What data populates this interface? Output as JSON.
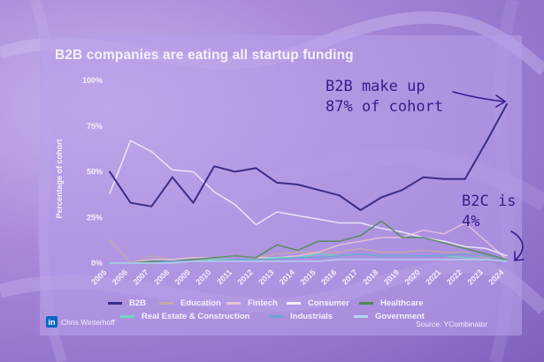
{
  "chart_data": {
    "type": "line",
    "title": "B2B companies are eating all startup funding",
    "ylabel": "Percentage of cohort",
    "xlabel": "",
    "ylim": [
      0,
      100
    ],
    "yticks": [
      "0%",
      "25%",
      "50%",
      "75%",
      "100%"
    ],
    "yticks_values": [
      0,
      25,
      50,
      75,
      100
    ],
    "categories": [
      "2005",
      "2006",
      "2007",
      "2008",
      "2009",
      "2010",
      "2011",
      "2012",
      "2013",
      "2014",
      "2015",
      "2016",
      "2017",
      "2018",
      "2019",
      "2020",
      "2021",
      "2022",
      "2023",
      "2024"
    ],
    "grid": false,
    "legend_placement": "bottom",
    "series": [
      {
        "name": "B2B",
        "color": "#3b2d86",
        "width": 2,
        "values": [
          50,
          33,
          31,
          47,
          33,
          53,
          50,
          52,
          44,
          43,
          40,
          37,
          29,
          36,
          40,
          47,
          46,
          46,
          66,
          87
        ]
      },
      {
        "name": "Education",
        "color": "#c7a8a6",
        "width": 1.5,
        "values": [
          13,
          0,
          4,
          2,
          3,
          3,
          4,
          3,
          5,
          6,
          6,
          6,
          8,
          6,
          6,
          7,
          6,
          6,
          3,
          3
        ]
      },
      {
        "name": "Fintech",
        "color": "#e8c2d8",
        "width": 1.5,
        "values": [
          0,
          0,
          2,
          2,
          3,
          3,
          4,
          3,
          3,
          4,
          6,
          10,
          12,
          14,
          14,
          18,
          16,
          22,
          12,
          2
        ]
      },
      {
        "name": "Consumer",
        "color": "#f2ecfb",
        "width": 1.5,
        "values": [
          38,
          67,
          61,
          51,
          50,
          39,
          32,
          21,
          28,
          26,
          24,
          22,
          22,
          19,
          17,
          14,
          12,
          9,
          8,
          4
        ]
      },
      {
        "name": "Healthcare",
        "color": "#4f8a57",
        "width": 1.5,
        "values": [
          0,
          0,
          1,
          1,
          2,
          3,
          4,
          3,
          10,
          7,
          12,
          12,
          15,
          23,
          14,
          14,
          11,
          8,
          5,
          2
        ]
      },
      {
        "name": "Real Estate & Construction",
        "color": "#6fd6c0",
        "width": 1.5,
        "values": [
          0,
          0,
          0,
          1,
          1,
          2,
          2,
          2,
          3,
          3,
          5,
          4,
          5,
          4,
          4,
          4,
          4,
          3,
          2,
          1
        ]
      },
      {
        "name": "Industrials",
        "color": "#6fa3d6",
        "width": 1.5,
        "values": [
          0,
          0,
          0,
          1,
          1,
          1,
          2,
          2,
          2,
          3,
          3,
          4,
          5,
          4,
          4,
          4,
          4,
          5,
          4,
          1
        ]
      },
      {
        "name": "Government",
        "color": "#b9d3f1",
        "width": 1.5,
        "values": [
          0,
          0,
          0,
          0,
          1,
          1,
          1,
          1,
          1,
          1,
          1,
          2,
          2,
          2,
          2,
          2,
          2,
          2,
          2,
          1
        ]
      }
    ]
  },
  "legend": [
    [
      "B2B",
      "Education",
      "Fintech",
      "Consumer",
      "Healthcare"
    ],
    [
      "Real Estate & Construction",
      "Industrials",
      "Government"
    ]
  ],
  "footer": {
    "logo_text": "in",
    "author": "Chris Winterhoff",
    "source": "Source: YCombinator"
  },
  "annotations": {
    "b2b_note": "B2B make up\n87% of cohort",
    "b2c_note": "B2C is\n4%"
  },
  "colors": {
    "annotation": "#3a1a8a",
    "linkedin": "#0a66c2"
  }
}
